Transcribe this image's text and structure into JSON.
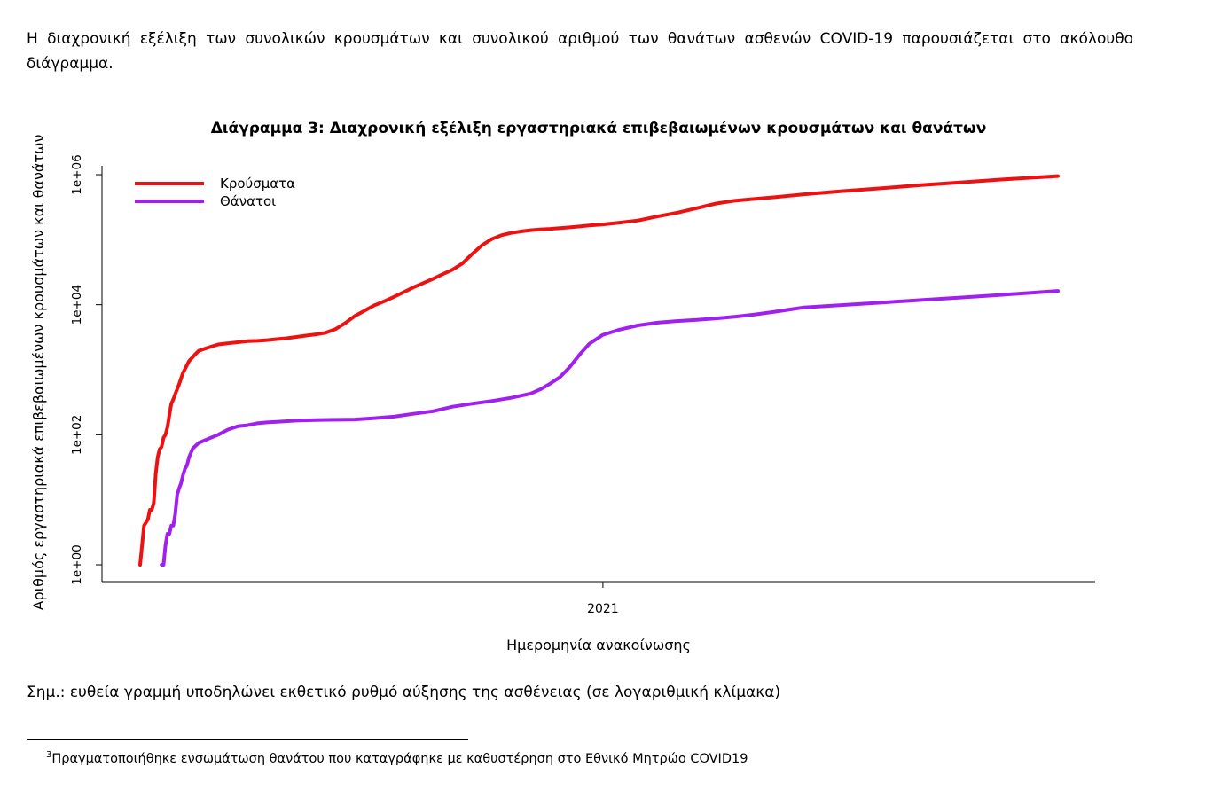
{
  "intro_text": "Η διαχρονική εξέλιξη των συνολικών κρουσμάτων και συνολικού αριθμού των θανάτων ασθενών COVID-19 παρουσιάζεται στο ακόλουθο διάγραμμα.",
  "note_text": "Σημ.: ευθεία γραμμή υποδηλώνει εκθετικό ρυθμό αύξησης της ασθένειας (σε λογαριθμική κλίμακα)",
  "footnote": {
    "number": "3",
    "text": "Πραγματοποιήθηκε ενσωμάτωση θανάτου που καταγράφηκε με καθυστέρηση στο Εθνικό Μητρώο COVID19"
  },
  "colors": {
    "cases": "#ee1111",
    "deaths": "#a020f0"
  },
  "chart_data": {
    "type": "line",
    "title": "Διάγραμμα 3: Διαχρονική εξέλιξη εργαστηριακά επιβεβαιωμένων κρουσμάτων και θανάτων",
    "xlabel": "Ημερομηνία ανακοίνωσης",
    "ylabel": "Αριθμός εργαστηριακά επιβεβαιωμένων κρουσμάτων και θανάτων",
    "yscale": "log",
    "ylim": [
      1,
      1000000
    ],
    "yticks": [
      {
        "value": 1,
        "label": "1e+00"
      },
      {
        "value": 100,
        "label": "1e+02"
      },
      {
        "value": 10000,
        "label": "1e+04"
      },
      {
        "value": 1000000,
        "label": "1e+06"
      }
    ],
    "xlim": [
      0,
      470
    ],
    "xticks": [
      {
        "value": 237,
        "label": "2021"
      }
    ],
    "x_unit": "days since first announcement (approx.)",
    "legend_position": "top-left",
    "series": [
      {
        "name": "Κρούσματα",
        "x": [
          0,
          1,
          2,
          4,
          5,
          6,
          7,
          8,
          9,
          10,
          11,
          12,
          13,
          14,
          15,
          16,
          17,
          18,
          20,
          22,
          25,
          28,
          30,
          33,
          37,
          40,
          45,
          50,
          55,
          60,
          65,
          70,
          75,
          80,
          85,
          90,
          95,
          100,
          105,
          110,
          115,
          120,
          125,
          130,
          135,
          140,
          145,
          150,
          155,
          160,
          165,
          170,
          175,
          180,
          185,
          190,
          195,
          200,
          205,
          210,
          215,
          220,
          225,
          230,
          237,
          245,
          255,
          265,
          275,
          285,
          295,
          305,
          315,
          325,
          340,
          360,
          380,
          400,
          420,
          440,
          470
        ],
        "y": [
          1,
          2,
          4,
          5,
          7,
          7,
          9,
          25,
          45,
          60,
          65,
          90,
          100,
          130,
          200,
          300,
          350,
          420,
          600,
          900,
          1350,
          1700,
          1950,
          2100,
          2300,
          2450,
          2550,
          2650,
          2750,
          2780,
          2850,
          2950,
          3050,
          3200,
          3350,
          3500,
          3700,
          4200,
          5200,
          6700,
          8100,
          9800,
          11300,
          13200,
          15600,
          18500,
          21500,
          25000,
          29500,
          34500,
          43000,
          60000,
          82000,
          102000,
          117000,
          127000,
          134000,
          140000,
          144000,
          147000,
          151000,
          155000,
          160000,
          166000,
          172000,
          182000,
          197000,
          228000,
          260000,
          305000,
          360000,
          400000,
          425000,
          450000,
          500000,
          560000,
          620000,
          690000,
          760000,
          840000,
          950000
        ]
      },
      {
        "name": "Θάνατοι",
        "x": [
          11,
          12,
          13,
          14,
          15,
          16,
          17,
          18,
          19,
          20,
          21,
          22,
          23,
          24,
          25,
          27,
          30,
          35,
          40,
          45,
          50,
          55,
          60,
          65,
          70,
          80,
          90,
          100,
          110,
          120,
          130,
          140,
          150,
          160,
          170,
          180,
          190,
          200,
          205,
          210,
          215,
          220,
          225,
          230,
          237,
          245,
          255,
          265,
          275,
          285,
          295,
          305,
          315,
          325,
          340,
          360,
          380,
          400,
          420,
          440,
          470
        ],
        "y": [
          1,
          1,
          2,
          3,
          3,
          4,
          4,
          6,
          12,
          15,
          18,
          24,
          30,
          34,
          45,
          62,
          75,
          87,
          100,
          120,
          135,
          140,
          150,
          155,
          158,
          165,
          168,
          170,
          172,
          180,
          190,
          210,
          230,
          270,
          300,
          330,
          370,
          430,
          500,
          610,
          770,
          1100,
          1700,
          2500,
          3450,
          4100,
          4800,
          5300,
          5600,
          5850,
          6150,
          6550,
          7100,
          7800,
          9100,
          9900,
          10800,
          11800,
          12900,
          14100,
          16300
        ]
      }
    ]
  }
}
